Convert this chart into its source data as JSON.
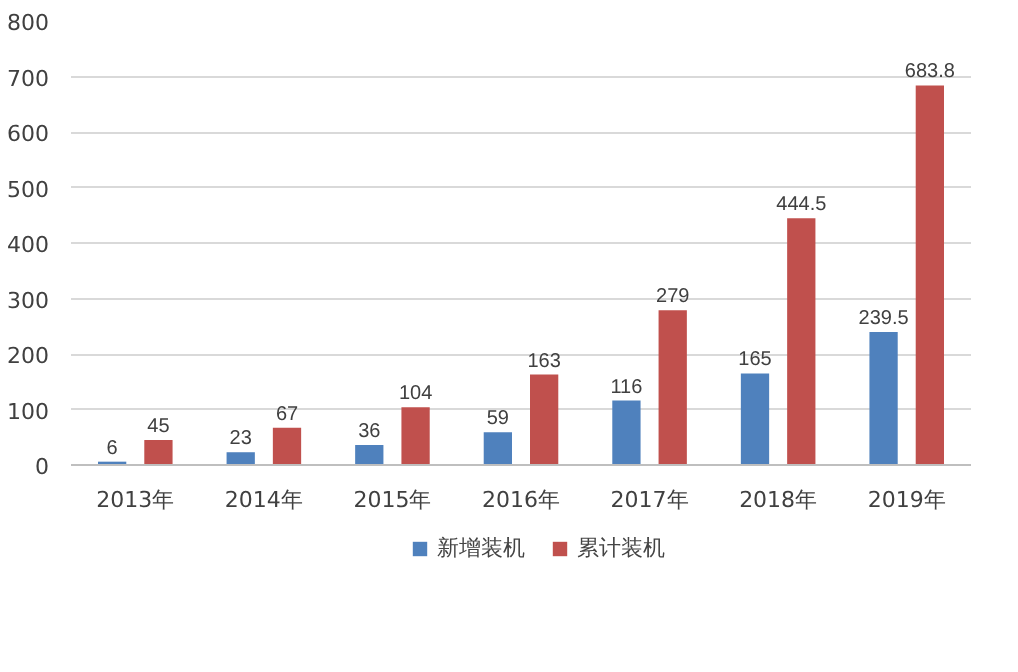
{
  "chart_data": {
    "type": "bar",
    "categories": [
      "2013年",
      "2014年",
      "2015年",
      "2016年",
      "2017年",
      "2018年",
      "2019年"
    ],
    "series": [
      {
        "name": "新增装机",
        "color": "#4f81bd",
        "values": [
          6,
          23,
          36,
          59,
          116,
          165,
          239.5
        ]
      },
      {
        "name": "累计装机",
        "color": "#c0504d",
        "values": [
          45,
          67,
          104,
          163,
          279,
          444.5,
          683.8
        ]
      }
    ],
    "ylim": [
      0,
      800
    ],
    "yticks": [
      0,
      100,
      200,
      300,
      400,
      500,
      600,
      700,
      800
    ],
    "grid": "y",
    "legend": "bottom",
    "data_labels": true
  }
}
